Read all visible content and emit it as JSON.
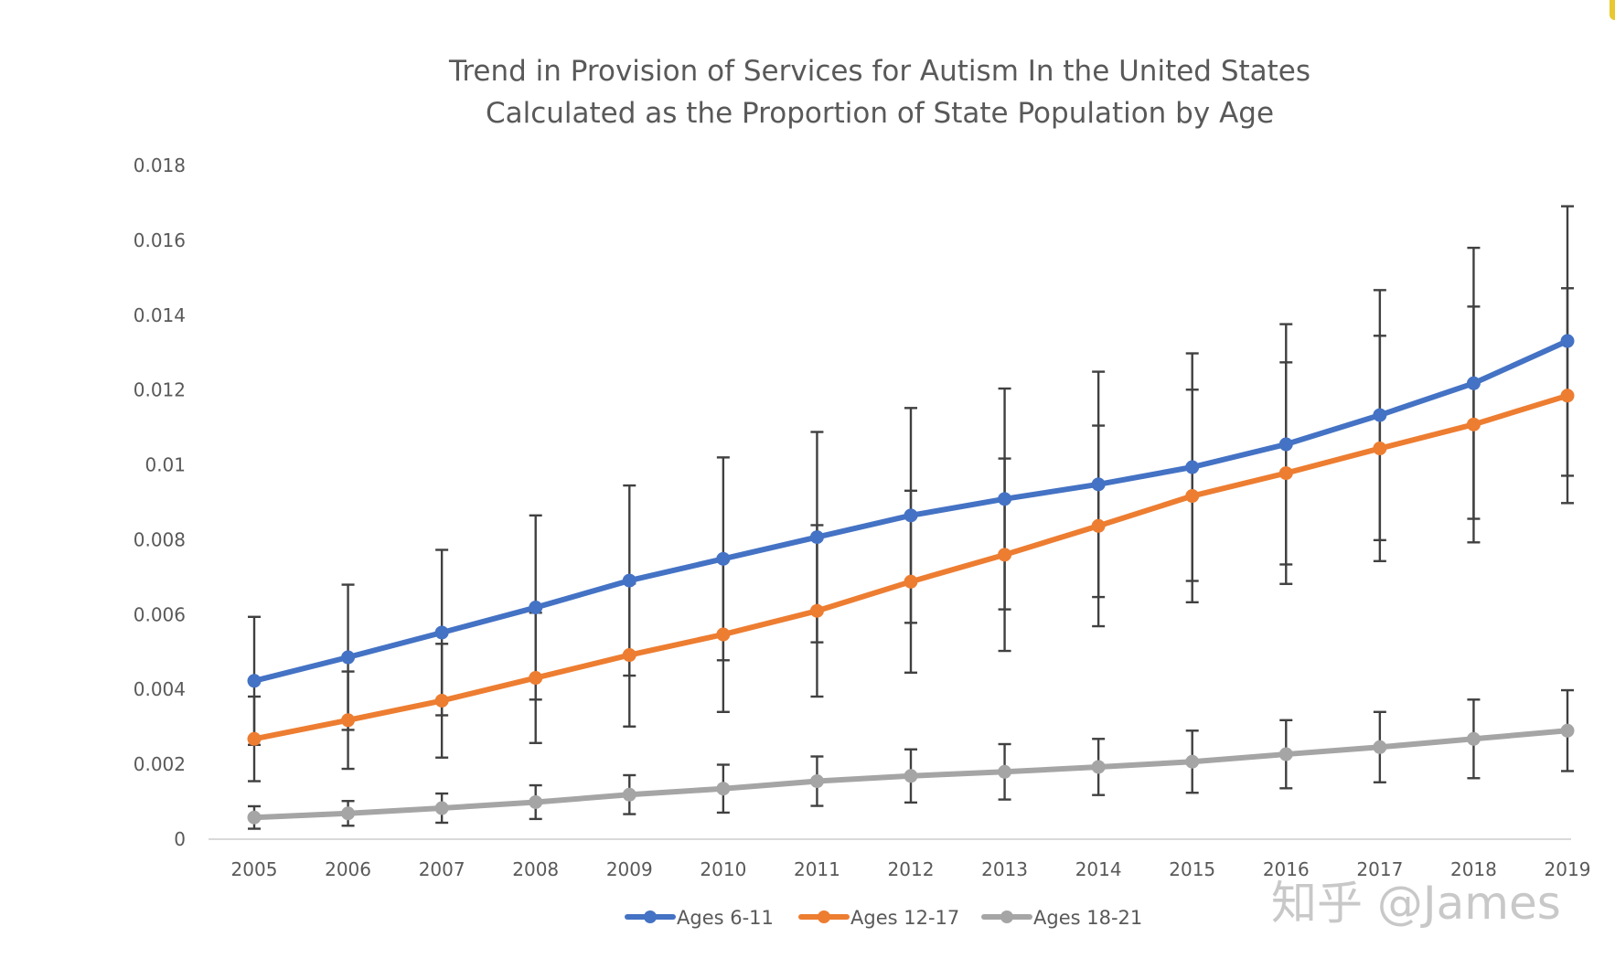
{
  "chart_data": {
    "type": "line",
    "title": [
      "Trend in Provision of Services for Autism In the United States",
      "Calculated as the Proportion of State Population by Age"
    ],
    "xlabel": "",
    "ylabel": "",
    "categories": [
      "2005",
      "2006",
      "2007",
      "2008",
      "2009",
      "2010",
      "2011",
      "2012",
      "2013",
      "2014",
      "2015",
      "2016",
      "2017",
      "2018",
      "2019"
    ],
    "ylim": [
      0,
      0.018
    ],
    "yticks": [
      0,
      0.002,
      0.004,
      0.006,
      0.008,
      0.01,
      0.012,
      0.014,
      0.016,
      0.018
    ],
    "ytick_labels": [
      "0",
      "0.002",
      "0.004",
      "0.006",
      "0.008",
      "0.01",
      "0.012",
      "0.014",
      "0.016",
      "0.018"
    ],
    "grid": false,
    "legend_position": "bottom",
    "error_bars": true,
    "series": [
      {
        "name": "Ages 6-11",
        "color": "#4472C4",
        "values": [
          0.00423,
          0.00486,
          0.00552,
          0.00619,
          0.00691,
          0.00749,
          0.00807,
          0.00865,
          0.00909,
          0.00948,
          0.00994,
          0.01055,
          0.01133,
          0.01218,
          0.01331
        ],
        "errors": [
          0.00171,
          0.00194,
          0.00221,
          0.00246,
          0.00254,
          0.00271,
          0.00281,
          0.00287,
          0.00295,
          0.00301,
          0.00304,
          0.00321,
          0.00334,
          0.00362,
          0.0036
        ]
      },
      {
        "name": "Ages 12-17",
        "color": "#ED7D31",
        "values": [
          0.00268,
          0.00318,
          0.0037,
          0.00431,
          0.00492,
          0.00547,
          0.0061,
          0.00688,
          0.0076,
          0.00837,
          0.00917,
          0.00978,
          0.01044,
          0.01108,
          0.01185
        ],
        "errors": [
          0.00113,
          0.0013,
          0.00152,
          0.00174,
          0.00191,
          0.00207,
          0.00229,
          0.00243,
          0.00257,
          0.00268,
          0.00284,
          0.00296,
          0.00301,
          0.00315,
          0.00287
        ]
      },
      {
        "name": "Ages 18-21",
        "color": "#A5A5A5",
        "values": [
          0.00058,
          0.00069,
          0.00083,
          0.00099,
          0.00119,
          0.00135,
          0.00155,
          0.00169,
          0.0018,
          0.00193,
          0.00207,
          0.00227,
          0.00246,
          0.00268,
          0.0029
        ],
        "errors": [
          0.0003,
          0.00033,
          0.00039,
          0.00045,
          0.00052,
          0.00064,
          0.00066,
          0.00071,
          0.00074,
          0.00075,
          0.00083,
          0.00091,
          0.00094,
          0.00105,
          0.00108
        ]
      }
    ]
  },
  "watermark": "知乎 @James"
}
